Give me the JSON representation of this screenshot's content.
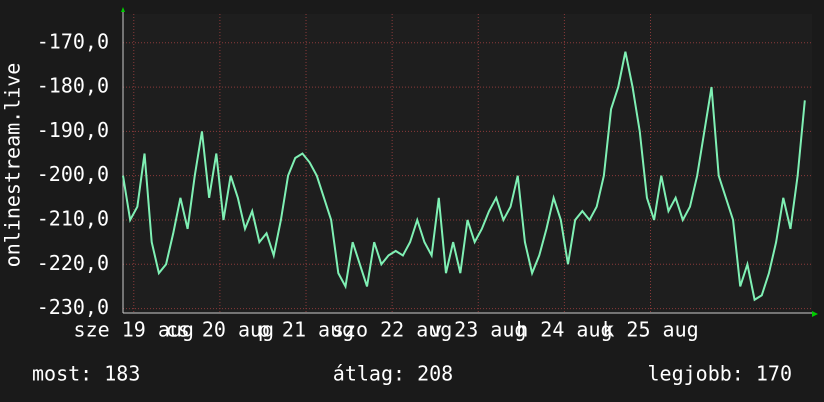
{
  "chart_data": {
    "type": "line",
    "y_label": "onlinestream.live",
    "x": [
      0,
      2,
      4,
      6,
      8,
      10,
      12,
      14,
      16,
      18,
      20,
      22,
      24,
      26,
      28,
      30,
      32,
      34,
      36,
      38,
      40,
      42,
      44,
      46,
      48,
      50,
      52,
      54,
      56,
      58,
      60,
      62,
      64,
      66,
      68,
      70,
      72,
      74,
      76,
      78,
      80,
      82,
      84,
      86,
      88,
      90,
      92,
      94,
      96,
      98,
      100,
      102,
      104,
      106,
      108,
      110,
      112,
      114,
      116,
      118,
      120,
      122,
      124,
      126,
      128,
      130,
      132,
      134,
      136,
      138,
      140,
      142,
      144,
      146,
      148,
      150,
      152,
      154,
      156,
      158,
      160,
      162,
      164,
      166,
      168,
      170,
      172,
      174,
      176,
      178,
      180,
      182,
      184,
      186,
      188,
      190
    ],
    "series": [
      {
        "name": "onlinestream.live",
        "color": "#7ff0b4",
        "values": [
          -200,
          -210,
          -207,
          -195,
          -215,
          -222,
          -220,
          -213,
          -205,
          -212,
          -200,
          -190,
          -205,
          -195,
          -210,
          -200,
          -205,
          -212,
          -208,
          -215,
          -213,
          -218,
          -210,
          -200,
          -196,
          -195,
          -197,
          -200,
          -205,
          -210,
          -222,
          -225,
          -215,
          -220,
          -225,
          -215,
          -220,
          -218,
          -217,
          -218,
          -215,
          -210,
          -215,
          -218,
          -205,
          -222,
          -215,
          -222,
          -210,
          -215,
          -212,
          -208,
          -205,
          -210,
          -207,
          -200,
          -215,
          -222,
          -218,
          -212,
          -205,
          -210,
          -220,
          -210,
          -208,
          -210,
          -207,
          -200,
          -185,
          -180,
          -172,
          -180,
          -190,
          -205,
          -210,
          -200,
          -208,
          -205,
          -210,
          -207,
          -200,
          -190,
          -180,
          -200,
          -205,
          -210,
          -225,
          -220,
          -228,
          -227,
          -222,
          -215,
          -205,
          -212,
          -200,
          -183
        ]
      }
    ],
    "xlim": [
      0,
      192
    ],
    "xticks": [
      {
        "value": 3,
        "label": "sze 19 aug"
      },
      {
        "value": 27,
        "label": "cs 20 aug"
      },
      {
        "value": 51,
        "label": "p 21 aug"
      },
      {
        "value": 75,
        "label": "szo 22 aug"
      },
      {
        "value": 99,
        "label": "v 23 aug"
      },
      {
        "value": 123,
        "label": "h 24 aug"
      },
      {
        "value": 147,
        "label": "k 25 aug"
      }
    ],
    "ylim": [
      -231,
      -163.5
    ],
    "yticks": [
      {
        "value": -230,
        "label": "-230,0"
      },
      {
        "value": -220,
        "label": "-220,0"
      },
      {
        "value": -210,
        "label": "-210,0"
      },
      {
        "value": -200,
        "label": "-200,0"
      },
      {
        "value": -190,
        "label": "-190,0"
      },
      {
        "value": -180,
        "label": "-180,0"
      },
      {
        "value": -170,
        "label": "-170,0"
      }
    ],
    "grid": true,
    "footer": [
      "most: 183",
      "átlag: 208",
      "legjobb: 170"
    ]
  }
}
